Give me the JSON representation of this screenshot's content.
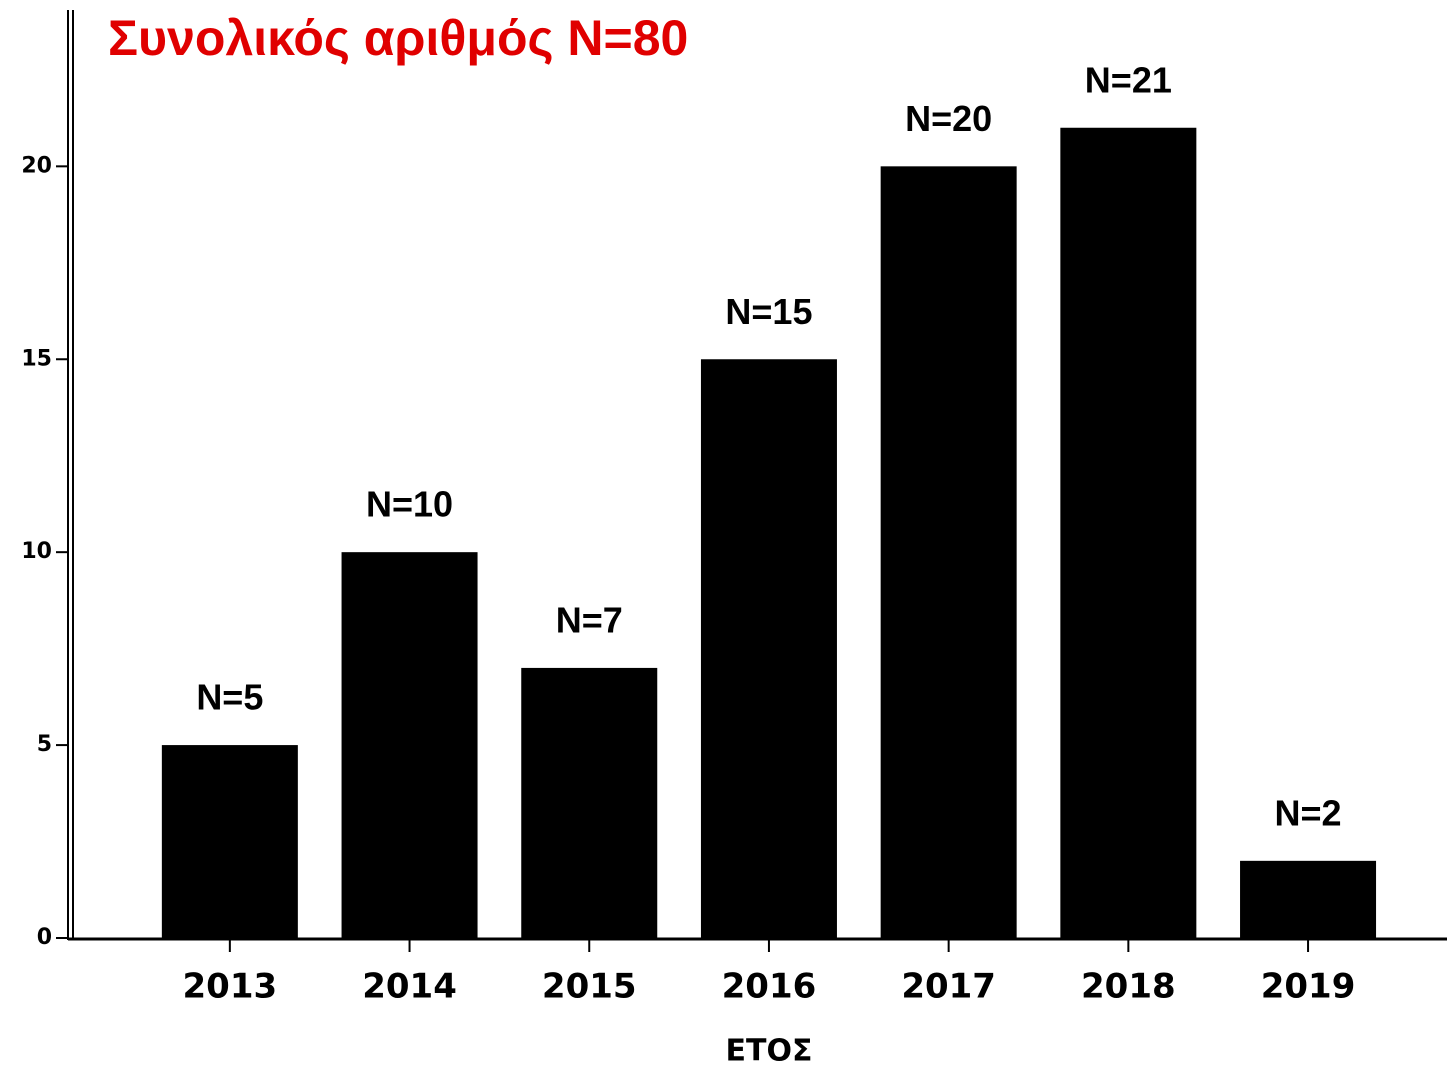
{
  "chart_data": {
    "type": "bar",
    "title": "Συνολικός αριθμός N=80",
    "x_label": "ΕΤΟΣ",
    "categories": [
      "2013",
      "2014",
      "2015",
      "2016",
      "2017",
      "2018",
      "2019"
    ],
    "values": [
      5,
      10,
      7,
      15,
      20,
      21,
      2
    ],
    "value_labels": [
      "N=5",
      "N=10",
      "N=7",
      "N=15",
      "N=20",
      "N=21",
      "N=2"
    ],
    "color": "#000000",
    "ylim": [
      0,
      24
    ],
    "yticks": [
      0,
      5,
      10,
      15,
      20
    ],
    "grid": false
  }
}
